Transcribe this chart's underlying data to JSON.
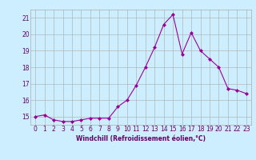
{
  "x": [
    0,
    1,
    2,
    3,
    4,
    5,
    6,
    7,
    8,
    9,
    10,
    11,
    12,
    13,
    14,
    15,
    16,
    17,
    18,
    19,
    20,
    21,
    22,
    23
  ],
  "y": [
    15.0,
    15.1,
    14.8,
    14.7,
    14.7,
    14.8,
    14.9,
    14.9,
    14.9,
    15.6,
    16.0,
    16.9,
    18.0,
    19.2,
    20.6,
    21.2,
    18.8,
    20.1,
    19.0,
    18.5,
    18.0,
    16.7,
    16.6,
    16.4
  ],
  "line_color": "#990099",
  "marker": "D",
  "marker_size": 2,
  "bg_color": "#cceeff",
  "grid_color": "#aaaaaa",
  "xlabel": "Windchill (Refroidissement éolien,°C)",
  "ylim": [
    14.5,
    21.5
  ],
  "xlim": [
    -0.5,
    23.5
  ],
  "yticks": [
    15,
    16,
    17,
    18,
    19,
    20,
    21
  ],
  "xticks": [
    0,
    1,
    2,
    3,
    4,
    5,
    6,
    7,
    8,
    9,
    10,
    11,
    12,
    13,
    14,
    15,
    16,
    17,
    18,
    19,
    20,
    21,
    22,
    23
  ],
  "title_color": "#660066",
  "label_fontsize": 5.5,
  "tick_fontsize": 5.5
}
